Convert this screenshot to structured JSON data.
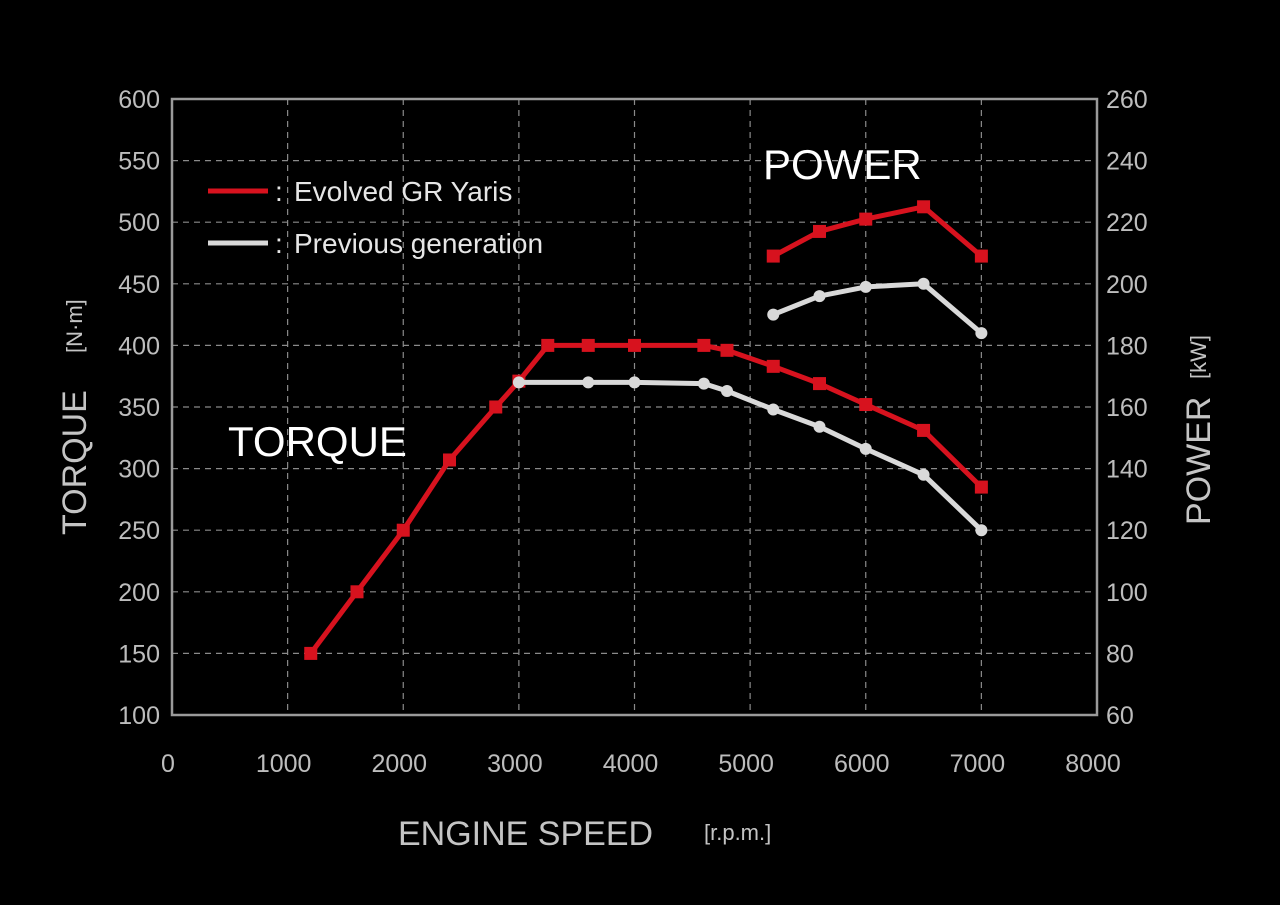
{
  "chart_data": {
    "type": "line",
    "x_axis": {
      "title": "ENGINE SPEED",
      "unit": "[r.p.m.]",
      "range": [
        0,
        8000
      ],
      "ticks": [
        0,
        1000,
        2000,
        3000,
        4000,
        5000,
        6000,
        7000,
        8000
      ]
    },
    "y_left": {
      "title": "TORQUE",
      "unit": "[N·m]",
      "range": [
        100,
        600
      ],
      "ticks": [
        100,
        150,
        200,
        250,
        300,
        350,
        400,
        450,
        500,
        550,
        600
      ]
    },
    "y_right": {
      "title": "POWER",
      "unit": "[kW]",
      "range": [
        60,
        260
      ],
      "ticks": [
        60,
        80,
        100,
        120,
        140,
        160,
        180,
        200,
        220,
        240,
        260
      ]
    },
    "grid": true,
    "legend": {
      "placement": "top-left",
      "entries": [
        {
          "label": "Evolved GR Yaris",
          "color": "#d7121e"
        },
        {
          "label": "Previous generation",
          "color": "#d9d9d9"
        }
      ],
      "separator": ":"
    },
    "annotations": {
      "power_label": "POWER",
      "torque_label": "TORQUE"
    },
    "series": [
      {
        "id": "torque-evolved",
        "legend": "Evolved GR Yaris",
        "axis": "left",
        "color": "#d7121e",
        "marker": "square",
        "x": [
          1200,
          1600,
          2000,
          2400,
          2800,
          3000,
          3250,
          3600,
          4000,
          4600,
          4800,
          5200,
          5600,
          6000,
          6500,
          7000
        ],
        "y": [
          150,
          200,
          250,
          307,
          350,
          371,
          400,
          400,
          400,
          400,
          396,
          383,
          369,
          352,
          331,
          285
        ]
      },
      {
        "id": "torque-previous",
        "legend": "Previous generation",
        "axis": "left",
        "color": "#d9d9d9",
        "marker": "circle",
        "x": [
          3000,
          3600,
          4000,
          4600,
          4800,
          5200,
          5600,
          6000,
          6500,
          7000
        ],
        "y": [
          370,
          370,
          370,
          369,
          363,
          348,
          334,
          316,
          295,
          250
        ]
      },
      {
        "id": "power-evolved",
        "legend": "Evolved GR Yaris",
        "axis": "right",
        "color": "#d7121e",
        "marker": "square",
        "x": [
          5200,
          5600,
          6000,
          6500,
          7000
        ],
        "y": [
          209,
          217,
          221,
          225,
          209
        ]
      },
      {
        "id": "power-previous",
        "legend": "Previous generation",
        "axis": "right",
        "color": "#d9d9d9",
        "marker": "circle",
        "x": [
          5200,
          5600,
          6000,
          6500,
          7000
        ],
        "y": [
          190,
          196,
          199,
          200,
          184
        ]
      }
    ]
  }
}
